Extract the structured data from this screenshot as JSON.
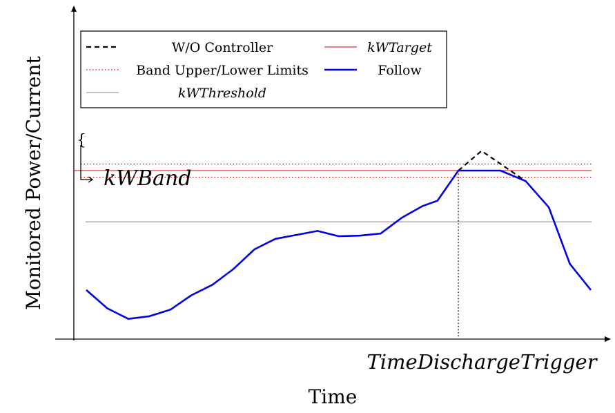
{
  "chart_data": {
    "type": "line",
    "xlabel": "Time",
    "ylabel": "Monitored Power/Current",
    "x_annotation": "TimeDischargeTrigger",
    "band_annotation": "kWBand",
    "grid": false,
    "legend_placement": "top-left",
    "xlim": [
      0,
      24
    ],
    "ylim": [
      0,
      100
    ],
    "legend": [
      {
        "label": "W/O Controller",
        "style": "dashed",
        "color": "#000000"
      },
      {
        "label": "kWTarget",
        "style": "solid-thin",
        "color": "#d40000",
        "italic": true
      },
      {
        "label": "Band Upper/Lower Limits",
        "style": "dotted",
        "color": "#d40000"
      },
      {
        "label": "Follow",
        "style": "solid-thick",
        "color": "#0000e0"
      },
      {
        "label": "kWThreshold",
        "style": "solid-thin",
        "color": "#808080",
        "italic": true
      }
    ],
    "reference_lines": {
      "kWTarget": 60,
      "band_upper": 62.5,
      "band_lower": 57.5,
      "kWThreshold": 40.5
    },
    "discharge_trigger_x": 17.7,
    "series": [
      {
        "name": "Follow",
        "color": "#0000e0",
        "x": [
          0,
          1,
          2,
          3,
          4,
          5,
          6,
          7,
          8,
          9,
          10,
          11,
          12,
          13,
          14,
          15,
          16,
          16.7,
          17.7,
          18.5,
          19.7,
          20.9,
          22,
          23,
          24
        ],
        "y": [
          14.5,
          7.5,
          3.5,
          4.5,
          7.0,
          12.5,
          16.5,
          22.5,
          30.0,
          34.0,
          35.5,
          37.0,
          35.0,
          35.2,
          36.0,
          42.0,
          46.5,
          48.5,
          60.0,
          60.0,
          60.0,
          56.0,
          46.0,
          24.5,
          14.5
        ]
      },
      {
        "name": "W/O Controller",
        "color": "#000000",
        "x": [
          17.7,
          18.8,
          20.9
        ],
        "y": [
          60.0,
          67.5,
          56.0
        ]
      }
    ]
  }
}
